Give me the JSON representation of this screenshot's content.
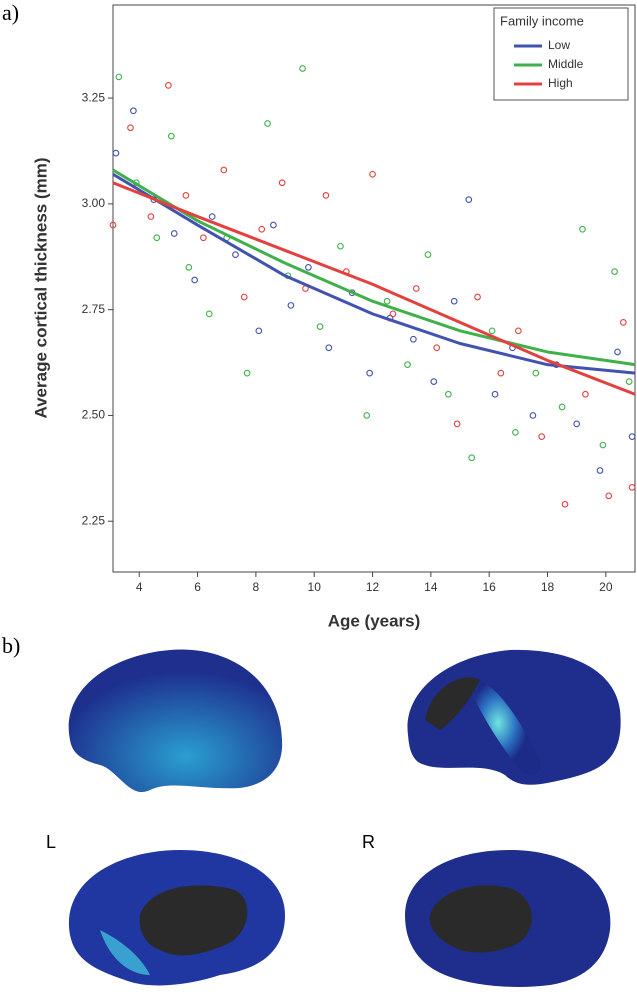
{
  "panel_labels": {
    "a": "a)",
    "b": "b)"
  },
  "hemisphere_labels": {
    "left": "L",
    "right": "R"
  },
  "chart_data": {
    "type": "scatter",
    "x_label": "Age (years)",
    "y_label": "Average cortical thickness (mm)",
    "legend_title": "Family income",
    "legend": "upper right",
    "xlim": [
      3.1,
      21
    ],
    "xticks": [
      4,
      6,
      8,
      10,
      12,
      14,
      16,
      18,
      20
    ],
    "ylim": [
      2.13,
      3.47
    ],
    "yticks": [
      2.25,
      {
        "value": 2.5,
        "label": "2.50"
      },
      2.75,
      {
        "value": 3,
        "label": "3.00"
      },
      3.25
    ],
    "series": [
      {
        "name": "Low",
        "color": "#4252b0",
        "x": [
          3.2,
          3.8,
          4.5,
          5.2,
          5.9,
          6.5,
          7.3,
          8.1,
          8.6,
          9.2,
          9.8,
          10.5,
          11.3,
          11.9,
          12.6,
          13.4,
          14.1,
          14.8,
          15.3,
          16.2,
          16.8,
          17.5,
          18.3,
          19.0,
          19.8,
          20.4,
          20.9
        ],
        "values": [
          3.12,
          3.22,
          3.01,
          2.93,
          2.82,
          2.97,
          2.88,
          2.7,
          2.95,
          2.76,
          2.85,
          2.66,
          2.79,
          2.6,
          2.73,
          2.68,
          2.58,
          2.77,
          3.01,
          2.55,
          2.66,
          2.5,
          2.62,
          2.48,
          2.37,
          2.65,
          2.45
        ],
        "fit_x": [
          3.1,
          6,
          9,
          12,
          15,
          18,
          21
        ],
        "fit_values": [
          3.07,
          2.95,
          2.83,
          2.74,
          2.67,
          2.62,
          2.6
        ]
      },
      {
        "name": "Middle",
        "color": "#3fb04a",
        "x": [
          3.3,
          3.9,
          4.6,
          5.1,
          5.7,
          6.4,
          7.0,
          7.7,
          8.4,
          9.1,
          9.6,
          10.2,
          10.9,
          11.8,
          12.5,
          13.2,
          13.9,
          14.6,
          15.4,
          16.1,
          16.9,
          17.6,
          18.5,
          19.2,
          19.9,
          20.3,
          20.8
        ],
        "values": [
          3.3,
          3.05,
          2.92,
          3.16,
          2.85,
          2.74,
          2.92,
          2.6,
          3.19,
          2.83,
          3.32,
          2.71,
          2.9,
          2.5,
          2.77,
          2.62,
          2.88,
          2.55,
          2.4,
          2.7,
          2.46,
          2.6,
          2.52,
          2.94,
          2.43,
          2.84,
          2.58
        ],
        "fit_x": [
          3.1,
          6,
          9,
          12,
          15,
          18,
          21
        ],
        "fit_values": [
          3.08,
          2.96,
          2.86,
          2.77,
          2.7,
          2.65,
          2.62
        ]
      },
      {
        "name": "High",
        "color": "#e2413d",
        "x": [
          3.1,
          3.7,
          4.4,
          5.0,
          5.6,
          6.2,
          6.9,
          7.6,
          8.2,
          8.9,
          9.7,
          10.4,
          11.1,
          12.0,
          12.7,
          13.5,
          14.2,
          14.9,
          15.6,
          16.4,
          17.0,
          17.8,
          18.6,
          19.3,
          20.1,
          20.6,
          20.9
        ],
        "values": [
          2.95,
          3.18,
          2.97,
          3.28,
          3.02,
          2.92,
          3.08,
          2.78,
          2.94,
          3.05,
          2.8,
          3.02,
          2.84,
          3.07,
          2.74,
          2.8,
          2.66,
          2.48,
          2.78,
          2.6,
          2.7,
          2.45,
          2.29,
          2.55,
          2.31,
          2.72,
          2.33
        ],
        "fit_x": [
          3.1,
          6,
          9,
          12,
          15,
          18,
          21
        ],
        "fit_values": [
          3.05,
          2.97,
          2.89,
          2.81,
          2.72,
          2.63,
          2.55
        ]
      }
    ]
  }
}
